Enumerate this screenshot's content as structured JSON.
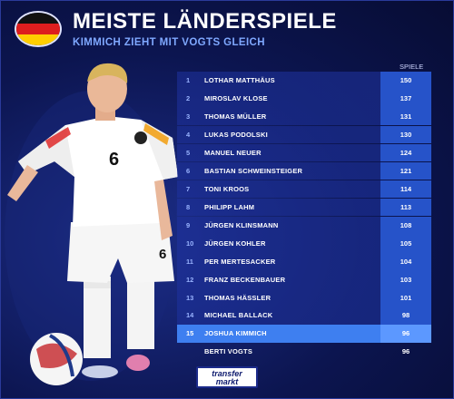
{
  "header": {
    "title": "MEISTE LÄNDERSPIELE",
    "subtitle": "KIMMICH ZIEHT MIT VOGTS GLEICH"
  },
  "table": {
    "column_header": "SPIELE",
    "rows": [
      {
        "rank": "1",
        "name": "LOTHAR MATTHÄUS",
        "games": "150"
      },
      {
        "rank": "2",
        "name": "MIROSLAV KLOSE",
        "games": "137"
      },
      {
        "rank": "3",
        "name": "THOMAS MÜLLER",
        "games": "131"
      },
      {
        "rank": "4",
        "name": "LUKAS PODOLSKI",
        "games": "130"
      },
      {
        "rank": "5",
        "name": "MANUEL NEUER",
        "games": "124"
      },
      {
        "rank": "6",
        "name": "BASTIAN SCHWEINSTEIGER",
        "games": "121"
      },
      {
        "rank": "7",
        "name": "TONI KROOS",
        "games": "114"
      },
      {
        "rank": "8",
        "name": "PHILIPP LAHM",
        "games": "113"
      },
      {
        "rank": "9",
        "name": "JÜRGEN KLINSMANN",
        "games": "108"
      },
      {
        "rank": "10",
        "name": "JÜRGEN KOHLER",
        "games": "105"
      },
      {
        "rank": "11",
        "name": "PER MERTESACKER",
        "games": "104"
      },
      {
        "rank": "12",
        "name": "FRANZ BECKENBAUER",
        "games": "103"
      },
      {
        "rank": "13",
        "name": "THOMAS HÄSSLER",
        "games": "101"
      },
      {
        "rank": "14",
        "name": "MICHAEL BALLACK",
        "games": "98"
      },
      {
        "rank": "15",
        "name": "JOSHUA KIMMICH",
        "games": "96"
      },
      {
        "rank": "",
        "name": "BERTI VOGTS",
        "games": "96"
      }
    ]
  },
  "player": {
    "shirt_number": "6"
  },
  "logo": {
    "line1": "transfer",
    "line2": "markt"
  },
  "colors": {
    "background": "#0c1550",
    "row": "#1a2c8c",
    "games_cell": "#2653c9",
    "highlight": "#3e7ff0",
    "subtitle": "#7fa8ff"
  }
}
